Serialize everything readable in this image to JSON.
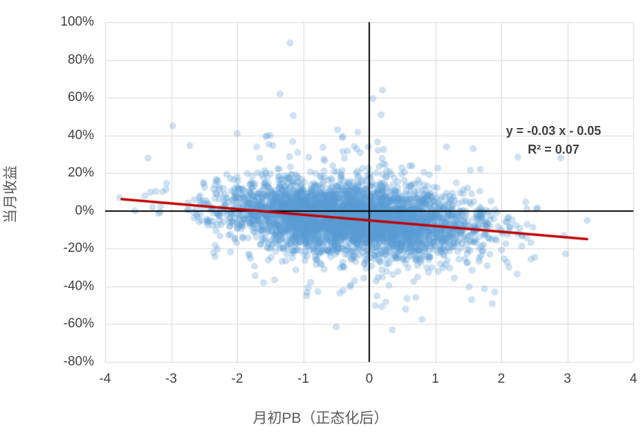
{
  "chart_data": {
    "type": "scatter",
    "title": "",
    "xlabel": "月初PB（正态化后）",
    "ylabel": "当月收益",
    "xlim": [
      -4,
      4
    ],
    "ylim": [
      -0.8,
      1.0
    ],
    "x_ticks": [
      -4,
      -3,
      -2,
      -1,
      0,
      1,
      2,
      3,
      4
    ],
    "x_tick_labels": [
      "-4",
      "-3",
      "-2",
      "-1",
      "0",
      "1",
      "2",
      "3",
      "4"
    ],
    "y_ticks": [
      -0.8,
      -0.6,
      -0.4,
      -0.2,
      0,
      0.2,
      0.4,
      0.6,
      0.8,
      1.0
    ],
    "y_tick_labels": [
      "-80%",
      "-60%",
      "-40%",
      "-20%",
      "0%",
      "20%",
      "40%",
      "60%",
      "80%",
      "100%"
    ],
    "grid": true,
    "grid_color": "#d9d9d9",
    "axis_line_color": "#000000",
    "legend": "none",
    "annotation": {
      "line1": "y = -0.03 x - 0.05",
      "line2": "R² = 0.07",
      "color": "#404040"
    },
    "trendline": {
      "slope": -0.03,
      "intercept": -0.05,
      "x_start": -3.75,
      "x_end": 3.3,
      "color": "#c00000",
      "width": 3.5
    },
    "scatter": {
      "marker_color": "#5b9bd5",
      "marker_opacity": 0.3,
      "marker_radius": 5,
      "n_points": 4200,
      "seed": 42,
      "x_mean": -0.25,
      "x_sd": 0.95,
      "x_min": -3.85,
      "x_max": 3.35,
      "noise_sd_main": 0.085,
      "noise_sd_tail": 0.19,
      "tail_fraction": 0.12,
      "y_min": -0.66,
      "y_max": 0.9
    },
    "outlier_points": [
      [
        -1.2,
        0.89
      ],
      [
        0.2,
        0.64
      ],
      [
        -1.35,
        0.62
      ],
      [
        0.18,
        0.51
      ],
      [
        -1.15,
        0.505
      ],
      [
        -2.0,
        0.41
      ],
      [
        -1.5,
        0.4
      ],
      [
        2.25,
        0.285
      ],
      [
        2.9,
        0.28
      ],
      [
        -3.35,
        0.28
      ],
      [
        -3.78,
        0.07
      ],
      [
        -3.55,
        0.0
      ],
      [
        3.3,
        -0.05
      ],
      [
        2.95,
        -0.13
      ],
      [
        0.35,
        -0.63
      ],
      [
        -0.5,
        -0.615
      ],
      [
        0.8,
        -0.575
      ],
      [
        -0.95,
        -0.45
      ],
      [
        1.55,
        -0.47
      ],
      [
        -1.6,
        -0.38
      ],
      [
        1.9,
        -0.43
      ],
      [
        0.55,
        -0.52
      ]
    ]
  }
}
